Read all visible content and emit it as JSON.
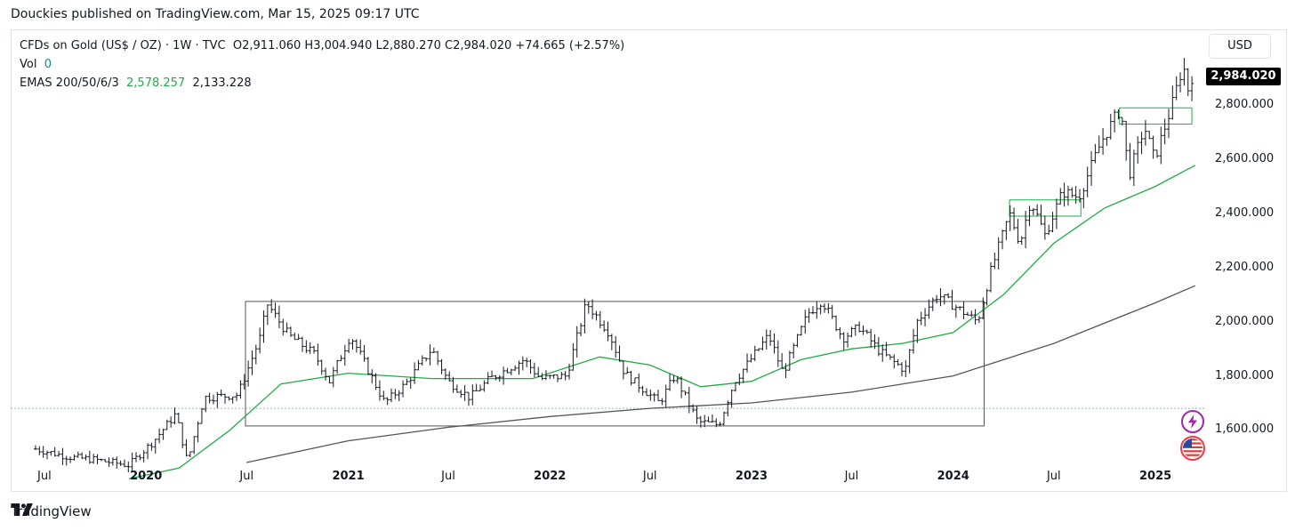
{
  "header": {
    "published": "Douckies published on TradingView.com, Mar 15, 2025 09:17 UTC"
  },
  "legend": {
    "symbol": "CFDs on Gold (US$ / OZ) · 1W · TVC",
    "ohlc": "O2,911.060  H3,004.940  L2,880.270  C2,984.020  +74.665 (+2.57%)",
    "vol_label": "Vol",
    "vol_value": "0",
    "ema_label": "EMAS 200/50/6/3",
    "ema_50": "2,578.257",
    "ema_200": "2,133.228"
  },
  "currency": "USD",
  "last_price": "2,984.020",
  "footer": {
    "brand": "TradingView"
  },
  "colors": {
    "candle": "#131722",
    "ema50": "#22ab45",
    "ema200": "#555555",
    "box": "#555555",
    "zone": "#22ab45",
    "last_price_bg": "#000000"
  },
  "chart_data": {
    "type": "ohlc-bar",
    "timeframe": "1W",
    "y_axis": {
      "min": 1480,
      "max": 3080,
      "ticks": [
        "1,600.000",
        "1,800.000",
        "2,000.000",
        "2,200.000",
        "2,400.000",
        "2,600.000",
        "2,800.000"
      ],
      "tick_values": [
        1600,
        1800,
        2000,
        2200,
        2400,
        2600,
        2800
      ]
    },
    "x_axis": {
      "start": "2019-05-01",
      "end": "2025-04-01",
      "ticks": [
        {
          "label": "Jul",
          "date": "2019-07-01",
          "bold": false
        },
        {
          "label": "2020",
          "date": "2020-01-01",
          "bold": true
        },
        {
          "label": "Jul",
          "date": "2020-07-01",
          "bold": false
        },
        {
          "label": "2021",
          "date": "2021-01-01",
          "bold": true
        },
        {
          "label": "Jul",
          "date": "2021-07-01",
          "bold": false
        },
        {
          "label": "2022",
          "date": "2022-01-01",
          "bold": true
        },
        {
          "label": "Jul",
          "date": "2022-07-01",
          "bold": false
        },
        {
          "label": "2023",
          "date": "2023-01-01",
          "bold": true
        },
        {
          "label": "Jul",
          "date": "2023-07-01",
          "bold": false
        },
        {
          "label": "2024",
          "date": "2024-01-01",
          "bold": true
        },
        {
          "label": "Jul",
          "date": "2024-07-01",
          "bold": false
        },
        {
          "label": "2025",
          "date": "2025-01-01",
          "bold": true
        }
      ]
    },
    "price_path": [
      [
        "2019-06-15",
        1530
      ],
      [
        "2019-08-15",
        1500
      ],
      [
        "2019-10-01",
        1490
      ],
      [
        "2019-12-01",
        1470
      ],
      [
        "2020-01-15",
        1560
      ],
      [
        "2020-02-24",
        1660
      ],
      [
        "2020-03-16",
        1480
      ],
      [
        "2020-04-15",
        1720
      ],
      [
        "2020-06-15",
        1730
      ],
      [
        "2020-07-27",
        1950
      ],
      [
        "2020-08-07",
        2067
      ],
      [
        "2020-09-15",
        1950
      ],
      [
        "2020-11-01",
        1880
      ],
      [
        "2020-11-28",
        1780
      ],
      [
        "2021-01-05",
        1950
      ],
      [
        "2021-03-08",
        1700
      ],
      [
        "2021-04-15",
        1770
      ],
      [
        "2021-06-01",
        1900
      ],
      [
        "2021-07-01",
        1780
      ],
      [
        "2021-08-09",
        1720
      ],
      [
        "2021-09-15",
        1790
      ],
      [
        "2021-11-15",
        1860
      ],
      [
        "2021-12-15",
        1790
      ],
      [
        "2022-01-31",
        1800
      ],
      [
        "2022-03-08",
        2070
      ],
      [
        "2022-04-18",
        1960
      ],
      [
        "2022-05-16",
        1810
      ],
      [
        "2022-07-18",
        1700
      ],
      [
        "2022-08-15",
        1800
      ],
      [
        "2022-09-26",
        1630
      ],
      [
        "2022-11-03",
        1620
      ],
      [
        "2022-12-01",
        1780
      ],
      [
        "2023-02-01",
        1950
      ],
      [
        "2023-02-27",
        1810
      ],
      [
        "2023-04-13",
        2030
      ],
      [
        "2023-05-08",
        2080
      ],
      [
        "2023-06-15",
        1940
      ],
      [
        "2023-07-15",
        1980
      ],
      [
        "2023-08-21",
        1890
      ],
      [
        "2023-10-06",
        1820
      ],
      [
        "2023-10-27",
        2000
      ],
      [
        "2023-12-04",
        2100
      ],
      [
        "2024-02-14",
        2000
      ],
      [
        "2024-03-08",
        2180
      ],
      [
        "2024-04-12",
        2400
      ],
      [
        "2024-05-01",
        2290
      ],
      [
        "2024-05-20",
        2450
      ],
      [
        "2024-06-15",
        2320
      ],
      [
        "2024-07-17",
        2480
      ],
      [
        "2024-08-15",
        2460
      ],
      [
        "2024-09-26",
        2670
      ],
      [
        "2024-10-30",
        2790
      ],
      [
        "2024-11-14",
        2540
      ],
      [
        "2024-12-12",
        2720
      ],
      [
        "2024-12-30",
        2600
      ],
      [
        "2025-01-31",
        2800
      ],
      [
        "2025-02-20",
        2950
      ],
      [
        "2025-03-03",
        2840
      ],
      [
        "2025-03-14",
        2984
      ]
    ],
    "ema_50": [
      [
        "2019-12-01",
        1420
      ],
      [
        "2020-03-01",
        1460
      ],
      [
        "2020-06-01",
        1600
      ],
      [
        "2020-09-01",
        1770
      ],
      [
        "2021-01-01",
        1810
      ],
      [
        "2021-06-01",
        1790
      ],
      [
        "2021-12-01",
        1790
      ],
      [
        "2022-04-01",
        1870
      ],
      [
        "2022-07-01",
        1840
      ],
      [
        "2022-10-01",
        1760
      ],
      [
        "2023-01-01",
        1780
      ],
      [
        "2023-04-01",
        1860
      ],
      [
        "2023-07-01",
        1900
      ],
      [
        "2023-10-01",
        1920
      ],
      [
        "2024-01-01",
        1960
      ],
      [
        "2024-04-01",
        2100
      ],
      [
        "2024-07-01",
        2290
      ],
      [
        "2024-10-01",
        2420
      ],
      [
        "2025-01-01",
        2500
      ],
      [
        "2025-03-14",
        2578
      ]
    ],
    "ema_200": [
      [
        "2020-07-01",
        1480
      ],
      [
        "2021-01-01",
        1560
      ],
      [
        "2021-07-01",
        1610
      ],
      [
        "2022-01-01",
        1650
      ],
      [
        "2022-07-01",
        1680
      ],
      [
        "2023-01-01",
        1700
      ],
      [
        "2023-07-01",
        1740
      ],
      [
        "2024-01-01",
        1800
      ],
      [
        "2024-07-01",
        1920
      ],
      [
        "2025-01-01",
        2070
      ],
      [
        "2025-03-14",
        2133
      ]
    ],
    "annotations": [
      {
        "type": "rectangle",
        "from": "2020-06-29",
        "to": "2024-02-26",
        "top": 2075,
        "bottom": 1615
      },
      {
        "type": "rectangle",
        "from": "2024-04-12",
        "to": "2024-08-19",
        "top": 2450,
        "bottom": 2390
      },
      {
        "type": "rectangle",
        "from": "2024-10-28",
        "to": "2025-03-08",
        "top": 2790,
        "bottom": 2730
      }
    ],
    "reference_price": 1680
  }
}
